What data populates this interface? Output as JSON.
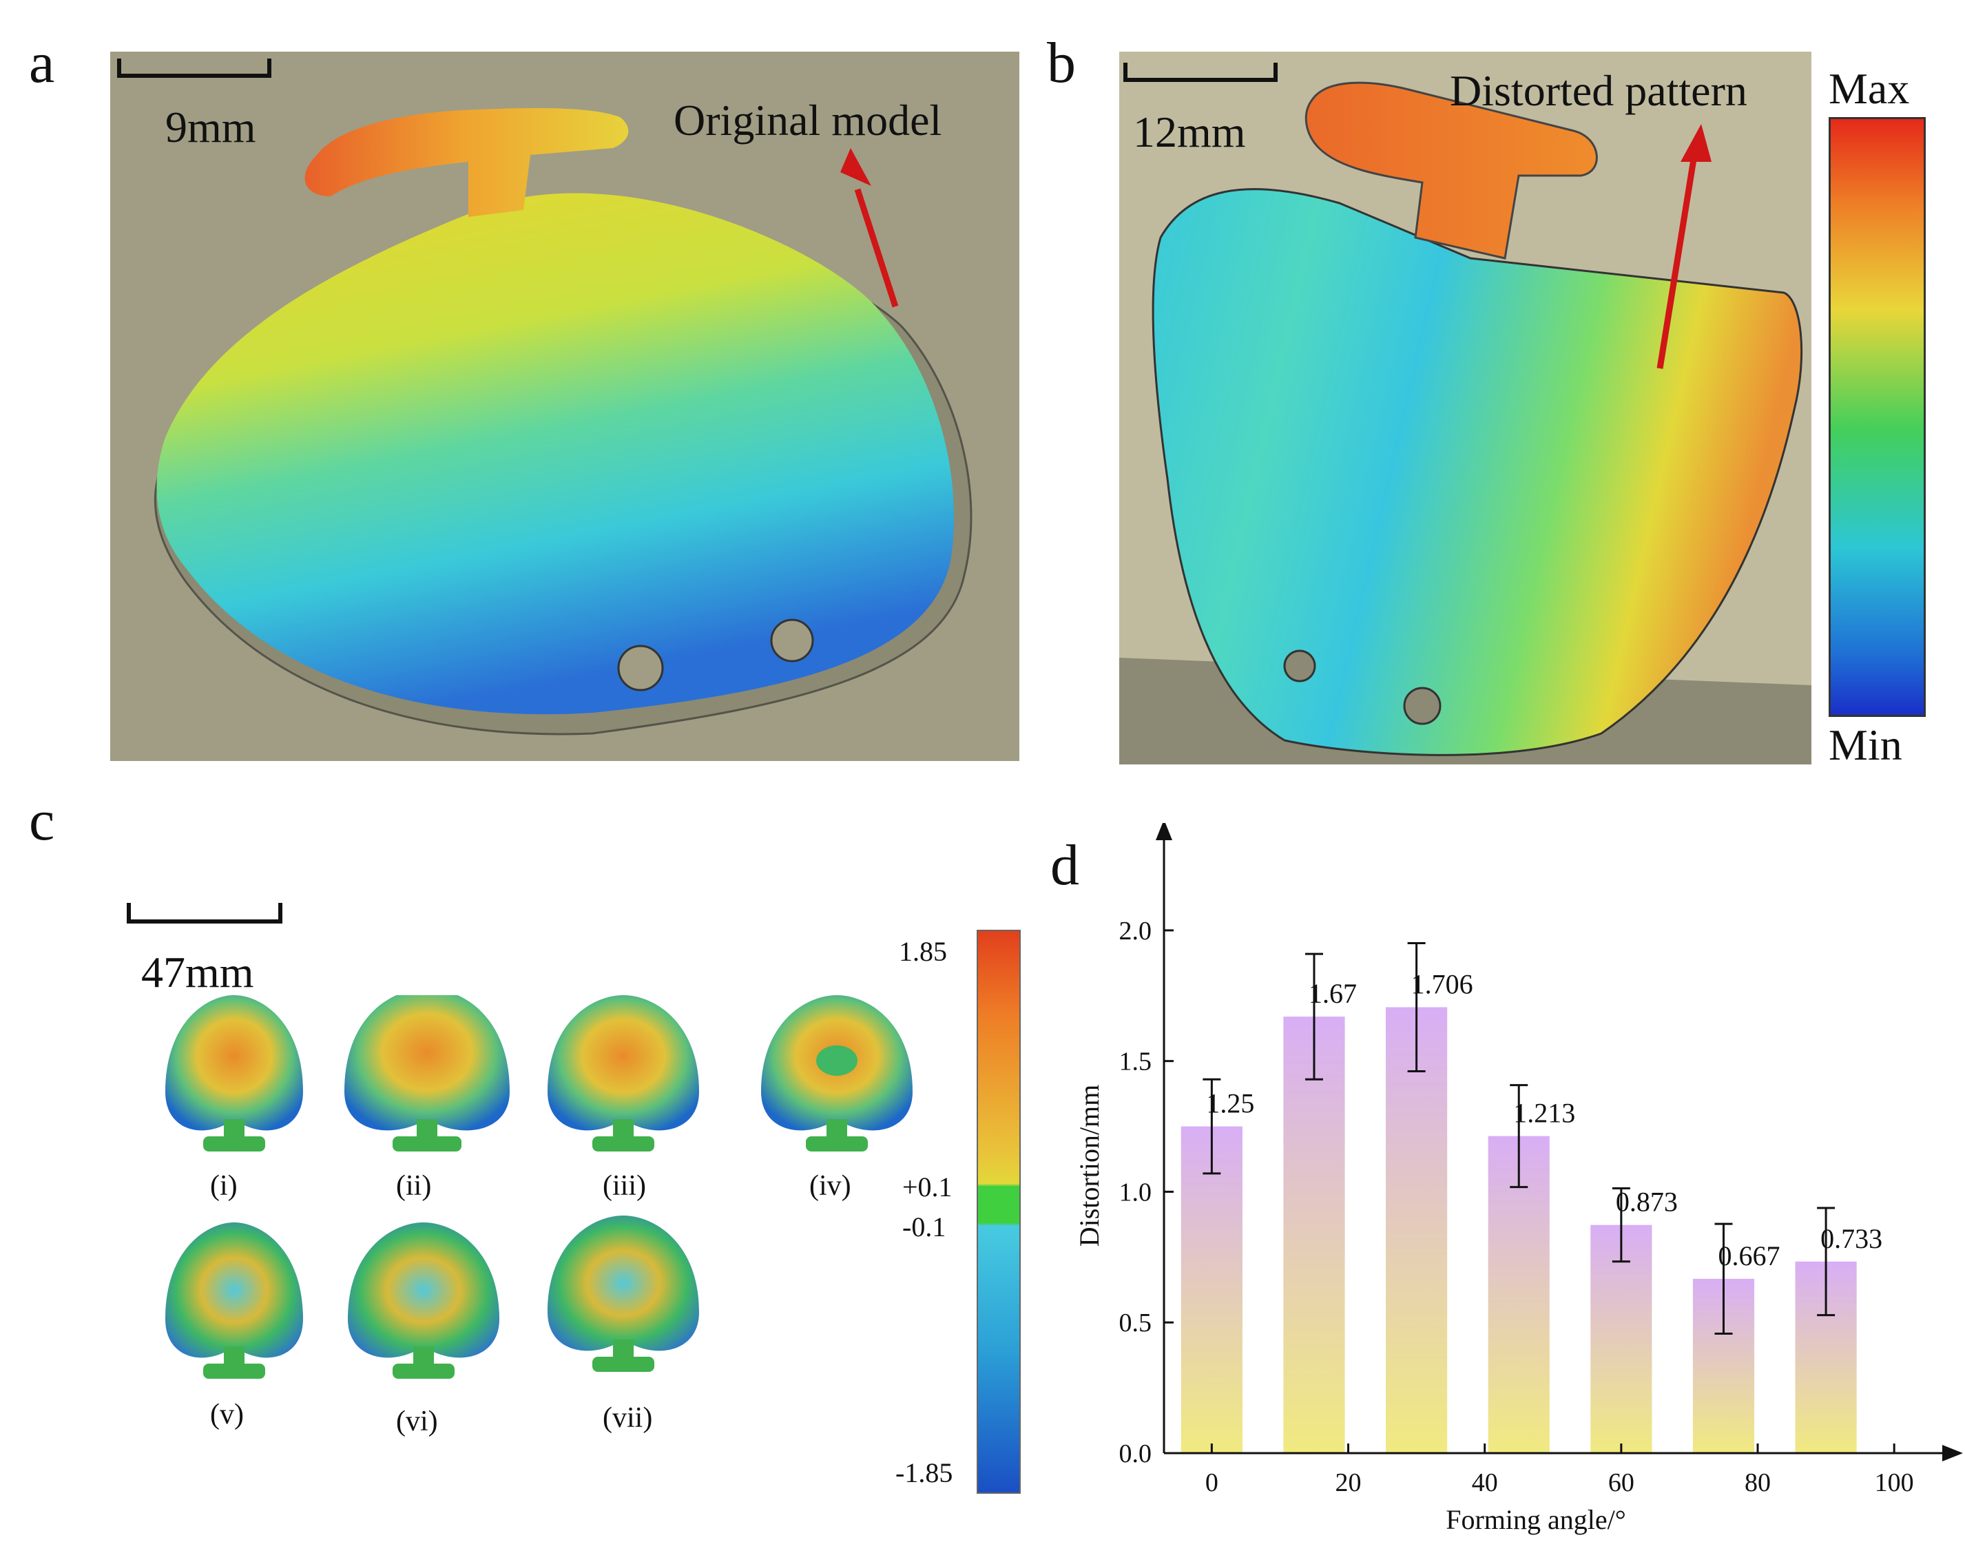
{
  "panels": {
    "a": {
      "letter": "a",
      "scale_label": "9mm",
      "annotation": "Original model"
    },
    "b": {
      "letter": "b",
      "scale_label": "12mm",
      "annotation": "Distorted pattern",
      "colorbar_max": "Max",
      "colorbar_min": "Min"
    },
    "c": {
      "letter": "c",
      "scale_label": "47mm",
      "items": [
        "(i)",
        "(ii)",
        "(iii)",
        "(iv)",
        "(v)",
        "(vi)",
        "(vii)"
      ],
      "colorbar_ticks": [
        "1.85",
        "+0.1",
        "-0.1",
        "-1.85"
      ]
    }
  },
  "chart_data": {
    "type": "bar",
    "panel_letter": "d",
    "title": "",
    "xlabel": "Forming angle/°",
    "ylabel": "Distortion/mm",
    "x": [
      0,
      15,
      30,
      45,
      60,
      75,
      90
    ],
    "values": [
      1.25,
      1.67,
      1.706,
      1.213,
      0.873,
      0.667,
      0.733
    ],
    "value_labels": [
      "1.25",
      "1.67",
      "1.706",
      "1.213",
      "0.873",
      "0.667",
      "0.733"
    ],
    "error": [
      0.18,
      0.24,
      0.245,
      0.195,
      0.14,
      0.21,
      0.205
    ],
    "xlim": [
      -7,
      102
    ],
    "ylim": [
      0,
      2.2
    ],
    "xticks": [
      0,
      20,
      40,
      60,
      80,
      100
    ],
    "yticks": [
      0.0,
      0.5,
      1.0,
      1.5,
      2.0
    ],
    "ytick_labels": [
      "0.0",
      "0.5",
      "1.0",
      "1.5",
      "2.0"
    ],
    "bar_gradient": [
      "#d8aef5",
      "#f0ea80"
    ]
  }
}
